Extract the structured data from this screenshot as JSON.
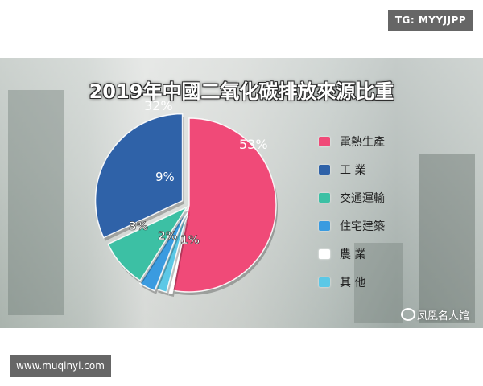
{
  "tg_badge": "TG: MYYJJPP",
  "url_badge": "www.muqinyi.com",
  "watermark": "凤凰名人馆",
  "chart_data": {
    "type": "pie",
    "title": "2019年中國二氧化碳排放來源比重",
    "slices": [
      {
        "label": "電熱生產",
        "value": 53,
        "display": "53%",
        "color": "#f04a78"
      },
      {
        "label": "工  業",
        "value": 32,
        "display": "32%",
        "color": "#2f62a8"
      },
      {
        "label": "交通運輸",
        "value": 9,
        "display": "9%",
        "color": "#3cc0a4"
      },
      {
        "label": "住宅建築",
        "value": 3,
        "display": "3%",
        "color": "#3a9be0"
      },
      {
        "label": "農  業",
        "value": 1,
        "display": "1%",
        "color": "#ffffff"
      },
      {
        "label": "其  他",
        "value": 2,
        "display": "2%",
        "color": "#5cc8e6"
      }
    ],
    "legend_position": "right"
  }
}
